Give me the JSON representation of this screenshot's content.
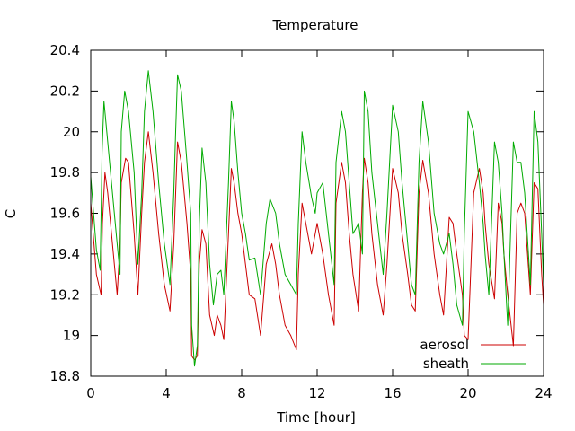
{
  "chart_data": {
    "type": "line",
    "title": "Temperature",
    "xlabel": "Time [hour]",
    "ylabel": "C",
    "xlim": [
      0,
      24
    ],
    "ylim": [
      18.8,
      20.4
    ],
    "xticks": [
      0,
      4,
      8,
      12,
      16,
      20,
      24
    ],
    "yticks": [
      18.8,
      19,
      19.2,
      19.4,
      19.6,
      19.8,
      20,
      20.2,
      20.4
    ],
    "xtick_labels": [
      "0",
      "4",
      "8",
      "12",
      "16",
      "20",
      "24"
    ],
    "ytick_labels": [
      "18.8",
      "19",
      "19.2",
      "19.4",
      "19.6",
      "19.8",
      "20",
      "20.2",
      "20.4"
    ],
    "grid": false,
    "legend": "bottom-right",
    "series": [
      {
        "name": "aerosol",
        "color": "#cc0000",
        "x": [
          0,
          0.3,
          0.55,
          0.62,
          0.75,
          0.9,
          1.1,
          1.4,
          1.55,
          1.62,
          1.85,
          2.0,
          2.3,
          2.5,
          2.7,
          2.85,
          3.05,
          3.3,
          3.6,
          3.9,
          4.2,
          4.4,
          4.5,
          4.6,
          4.8,
          5.1,
          5.3,
          5.35,
          5.5,
          5.65,
          5.75,
          5.9,
          6.1,
          6.3,
          6.55,
          6.7,
          6.9,
          7.05,
          7.3,
          7.45,
          7.6,
          7.8,
          8.0,
          8.2,
          8.4,
          8.7,
          9.0,
          9.3,
          9.6,
          9.8,
          10.0,
          10.3,
          10.6,
          10.9,
          11.0,
          11.2,
          11.4,
          11.7,
          11.9,
          12.0,
          12.3,
          12.6,
          12.9,
          13.0,
          13.3,
          13.5,
          13.7,
          13.9,
          14.2,
          14.4,
          14.5,
          14.7,
          14.9,
          15.2,
          15.5,
          15.7,
          16.0,
          16.3,
          16.5,
          16.8,
          17.0,
          17.2,
          17.4,
          17.6,
          17.9,
          18.2,
          18.5,
          18.7,
          19.0,
          19.2,
          19.4,
          19.7,
          19.8,
          20.0,
          20.3,
          20.6,
          20.8,
          20.9,
          21.1,
          21.4,
          21.6,
          21.8,
          21.9,
          22.1,
          22.4,
          22.6,
          22.8,
          23.0,
          23.3,
          23.5,
          23.7,
          23.9,
          24.0
        ],
        "y": [
          19.65,
          19.3,
          19.2,
          19.55,
          19.8,
          19.7,
          19.5,
          19.2,
          19.45,
          19.75,
          19.87,
          19.85,
          19.5,
          19.2,
          19.6,
          19.85,
          20.0,
          19.8,
          19.5,
          19.25,
          19.12,
          19.45,
          19.7,
          19.95,
          19.85,
          19.55,
          19.3,
          18.9,
          18.88,
          18.9,
          19.35,
          19.52,
          19.45,
          19.1,
          19.0,
          19.1,
          19.05,
          18.98,
          19.5,
          19.82,
          19.75,
          19.6,
          19.5,
          19.35,
          19.2,
          19.18,
          19.0,
          19.35,
          19.45,
          19.35,
          19.2,
          19.05,
          19.0,
          18.93,
          19.3,
          19.65,
          19.55,
          19.4,
          19.5,
          19.55,
          19.4,
          19.2,
          19.05,
          19.65,
          19.85,
          19.75,
          19.5,
          19.3,
          19.12,
          19.7,
          19.87,
          19.75,
          19.5,
          19.25,
          19.1,
          19.35,
          19.82,
          19.7,
          19.5,
          19.3,
          19.15,
          19.12,
          19.7,
          19.86,
          19.7,
          19.4,
          19.2,
          19.1,
          19.58,
          19.55,
          19.4,
          19.2,
          19.0,
          18.98,
          19.7,
          19.82,
          19.7,
          19.55,
          19.35,
          19.18,
          19.65,
          19.55,
          19.4,
          19.2,
          18.95,
          19.6,
          19.65,
          19.6,
          19.2,
          19.75,
          19.72,
          19.3,
          19.15
        ]
      },
      {
        "name": "sheath",
        "color": "#00aa00",
        "x": [
          0,
          0.3,
          0.5,
          0.6,
          0.7,
          0.9,
          1.1,
          1.4,
          1.55,
          1.62,
          1.8,
          2.0,
          2.3,
          2.5,
          2.7,
          2.85,
          3.05,
          3.3,
          3.6,
          3.9,
          4.2,
          4.4,
          4.5,
          4.6,
          4.8,
          5.1,
          5.3,
          5.35,
          5.5,
          5.65,
          5.75,
          5.9,
          6.1,
          6.3,
          6.5,
          6.7,
          6.9,
          7.05,
          7.3,
          7.45,
          7.6,
          7.8,
          8.0,
          8.2,
          8.4,
          8.7,
          9.0,
          9.3,
          9.5,
          9.8,
          10.0,
          10.3,
          10.6,
          10.9,
          11.0,
          11.2,
          11.4,
          11.7,
          11.9,
          12.0,
          12.3,
          12.6,
          12.9,
          13.0,
          13.3,
          13.5,
          13.7,
          13.9,
          14.2,
          14.4,
          14.5,
          14.7,
          14.9,
          15.2,
          15.5,
          15.7,
          16.0,
          16.3,
          16.5,
          16.8,
          17.0,
          17.2,
          17.4,
          17.6,
          17.9,
          18.2,
          18.5,
          18.7,
          19.0,
          19.2,
          19.4,
          19.7,
          19.8,
          20.0,
          20.3,
          20.6,
          20.8,
          20.9,
          21.1,
          21.4,
          21.6,
          21.8,
          21.9,
          22.1,
          22.4,
          22.6,
          22.8,
          23.0,
          23.3,
          23.5,
          23.7,
          23.9,
          24.0
        ],
        "y": [
          19.78,
          19.42,
          19.32,
          19.9,
          20.15,
          19.95,
          19.75,
          19.45,
          19.3,
          20.0,
          20.2,
          20.1,
          19.8,
          19.35,
          19.7,
          20.1,
          20.3,
          20.1,
          19.75,
          19.45,
          19.25,
          19.7,
          20.0,
          20.28,
          20.2,
          19.85,
          19.6,
          19.05,
          18.85,
          18.95,
          19.55,
          19.92,
          19.75,
          19.35,
          19.15,
          19.3,
          19.32,
          19.2,
          19.75,
          20.15,
          20.05,
          19.8,
          19.6,
          19.5,
          19.37,
          19.38,
          19.2,
          19.55,
          19.67,
          19.6,
          19.45,
          19.3,
          19.25,
          19.2,
          19.55,
          20.0,
          19.85,
          19.68,
          19.6,
          19.7,
          19.75,
          19.5,
          19.25,
          19.85,
          20.1,
          20.0,
          19.75,
          19.5,
          19.55,
          19.4,
          20.2,
          20.1,
          19.8,
          19.55,
          19.3,
          19.6,
          20.13,
          20.0,
          19.75,
          19.45,
          19.25,
          19.2,
          19.85,
          20.15,
          19.95,
          19.6,
          19.45,
          19.4,
          19.5,
          19.35,
          19.15,
          19.05,
          19.5,
          20.1,
          20.0,
          19.75,
          19.55,
          19.4,
          19.2,
          19.95,
          19.85,
          19.6,
          19.4,
          19.05,
          19.95,
          19.85,
          19.85,
          19.7,
          19.25,
          20.1,
          19.95,
          19.5,
          19.25
        ]
      }
    ]
  }
}
